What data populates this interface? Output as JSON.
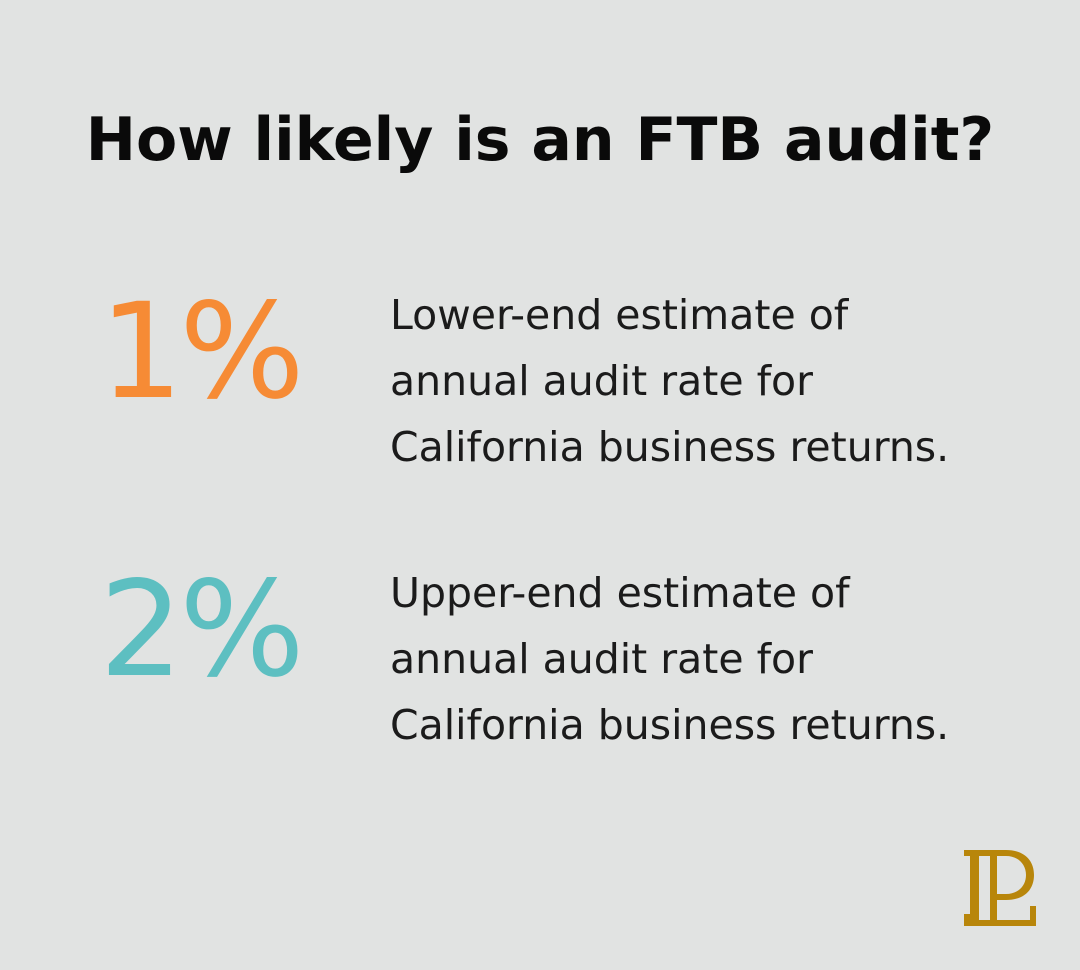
{
  "title": "How likely is an FTB audit?",
  "stats": [
    {
      "value": "1%",
      "color": "#f68b35",
      "lines": [
        "Lower-end estimate of",
        "annual audit rate for",
        "California business returns."
      ]
    },
    {
      "value": "2%",
      "color": "#5dbfc1",
      "lines": [
        "Upper-end estimate of",
        "annual audit rate for",
        "California business returns."
      ]
    }
  ],
  "logo": {
    "icon": "bp-monogram-icon",
    "color": "#b8860b"
  }
}
